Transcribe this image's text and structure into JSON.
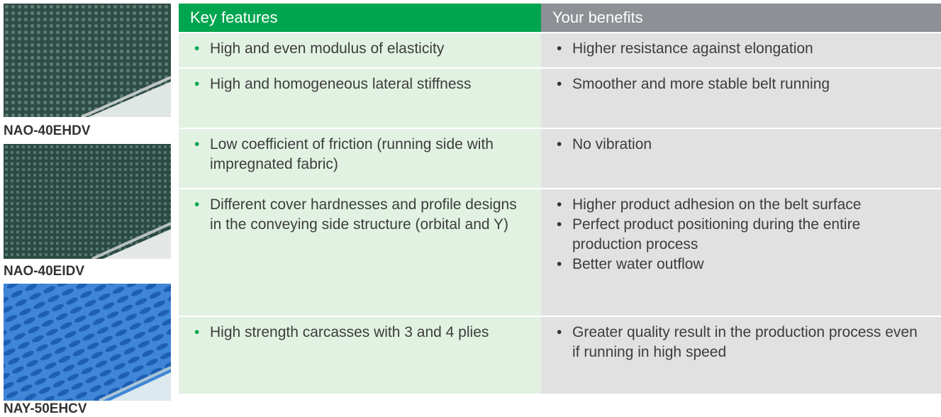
{
  "products": [
    {
      "label": "NAO-40EHDV"
    },
    {
      "label": "NAO-40EIDV"
    },
    {
      "label": "NAY-50EHCV"
    }
  ],
  "table": {
    "headers": [
      "Key features",
      "Your benefits"
    ],
    "rows": [
      {
        "feature": "High and even modulus of elasticity",
        "benefits": [
          "Higher resistance against elongation"
        ]
      },
      {
        "feature": "High and homogeneous lateral stiffness",
        "benefits": [
          "Smoother and more stable belt running"
        ]
      },
      {
        "feature": "Low coefficient of friction (running side with impregnated fabric)",
        "benefits": [
          "No vibration"
        ]
      },
      {
        "feature": "Different cover hardnesses and profile designs in the conveying side structure (orbital and Y)",
        "benefits": [
          "Higher product adhesion on the belt surface",
          "Perfect product positioning during the entire production process",
          "Better water outflow"
        ]
      },
      {
        "feature": "High strength carcasses with 3 and 4 plies",
        "benefits": [
          "Greater quality result in the production process even if running in high speed"
        ]
      }
    ]
  }
}
